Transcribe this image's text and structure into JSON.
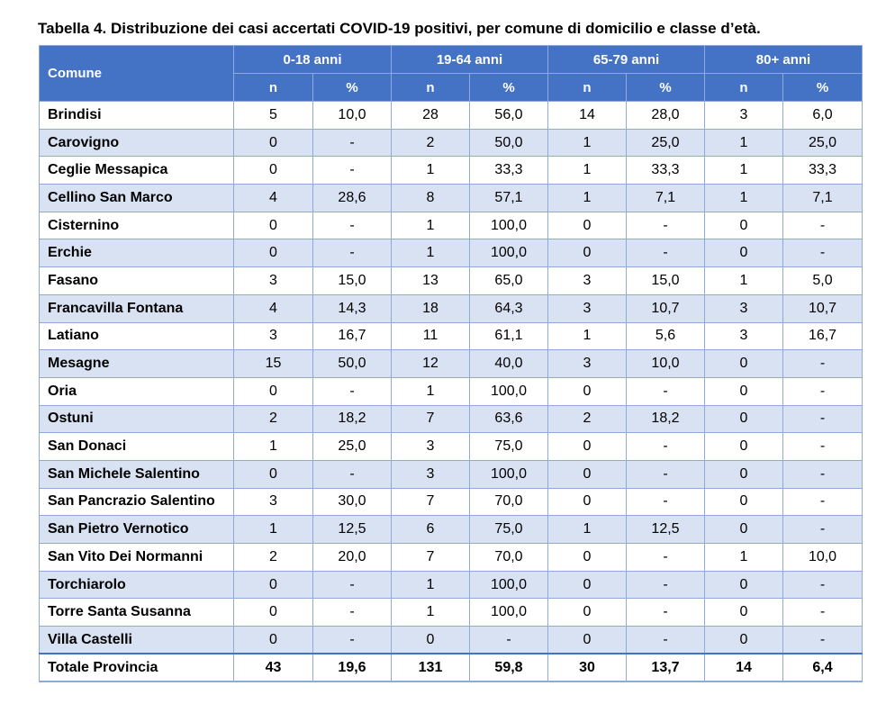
{
  "title": "Tabella 4. Distribuzione dei casi accertati COVID-19 positivi, per comune di domicilio e classe d’età.",
  "header": {
    "comune": "Comune",
    "groups": [
      "0-18 anni",
      "19-64 anni",
      "65-79 anni",
      "80+ anni"
    ],
    "sub": [
      "n",
      "%",
      "n",
      "%",
      "n",
      "%",
      "n",
      "%"
    ]
  },
  "rows": [
    {
      "name": "Brindisi",
      "cells": [
        "5",
        "10,0",
        "28",
        "56,0",
        "14",
        "28,0",
        "3",
        "6,0"
      ]
    },
    {
      "name": "Carovigno",
      "cells": [
        "0",
        "-",
        "2",
        "50,0",
        "1",
        "25,0",
        "1",
        "25,0"
      ]
    },
    {
      "name": "Ceglie Messapica",
      "cells": [
        "0",
        "-",
        "1",
        "33,3",
        "1",
        "33,3",
        "1",
        "33,3"
      ]
    },
    {
      "name": "Cellino San Marco",
      "cells": [
        "4",
        "28,6",
        "8",
        "57,1",
        "1",
        "7,1",
        "1",
        "7,1"
      ]
    },
    {
      "name": "Cisternino",
      "cells": [
        "0",
        "-",
        "1",
        "100,0",
        "0",
        "-",
        "0",
        "-"
      ]
    },
    {
      "name": "Erchie",
      "cells": [
        "0",
        "-",
        "1",
        "100,0",
        "0",
        "-",
        "0",
        "-"
      ]
    },
    {
      "name": "Fasano",
      "cells": [
        "3",
        "15,0",
        "13",
        "65,0",
        "3",
        "15,0",
        "1",
        "5,0"
      ]
    },
    {
      "name": "Francavilla Fontana",
      "cells": [
        "4",
        "14,3",
        "18",
        "64,3",
        "3",
        "10,7",
        "3",
        "10,7"
      ]
    },
    {
      "name": "Latiano",
      "cells": [
        "3",
        "16,7",
        "11",
        "61,1",
        "1",
        "5,6",
        "3",
        "16,7"
      ]
    },
    {
      "name": "Mesagne",
      "cells": [
        "15",
        "50,0",
        "12",
        "40,0",
        "3",
        "10,0",
        "0",
        "-"
      ]
    },
    {
      "name": "Oria",
      "cells": [
        "0",
        "-",
        "1",
        "100,0",
        "0",
        "-",
        "0",
        "-"
      ]
    },
    {
      "name": "Ostuni",
      "cells": [
        "2",
        "18,2",
        "7",
        "63,6",
        "2",
        "18,2",
        "0",
        "-"
      ]
    },
    {
      "name": "San Donaci",
      "cells": [
        "1",
        "25,0",
        "3",
        "75,0",
        "0",
        "-",
        "0",
        "-"
      ]
    },
    {
      "name": "San Michele Salentino",
      "cells": [
        "0",
        "-",
        "3",
        "100,0",
        "0",
        "-",
        "0",
        "-"
      ]
    },
    {
      "name": "San Pancrazio Salentino",
      "cells": [
        "3",
        "30,0",
        "7",
        "70,0",
        "0",
        "-",
        "0",
        "-"
      ]
    },
    {
      "name": "San Pietro Vernotico",
      "cells": [
        "1",
        "12,5",
        "6",
        "75,0",
        "1",
        "12,5",
        "0",
        "-"
      ]
    },
    {
      "name": "San Vito Dei Normanni",
      "cells": [
        "2",
        "20,0",
        "7",
        "70,0",
        "0",
        "-",
        "1",
        "10,0"
      ]
    },
    {
      "name": "Torchiarolo",
      "cells": [
        "0",
        "-",
        "1",
        "100,0",
        "0",
        "-",
        "0",
        "-"
      ]
    },
    {
      "name": "Torre Santa Susanna",
      "cells": [
        "0",
        "-",
        "1",
        "100,0",
        "0",
        "-",
        "0",
        "-"
      ]
    },
    {
      "name": "Villa Castelli",
      "cells": [
        "0",
        "-",
        "0",
        "-",
        "0",
        "-",
        "0",
        "-"
      ]
    }
  ],
  "total": {
    "name": "Totale Provincia",
    "cells": [
      "43",
      "19,6",
      "131",
      "59,8",
      "30",
      "13,7",
      "14",
      "6,4"
    ]
  },
  "colors": {
    "header_bg": "#4472c4",
    "alt_row_bg": "#d9e2f3",
    "border": "#8eaadb"
  }
}
